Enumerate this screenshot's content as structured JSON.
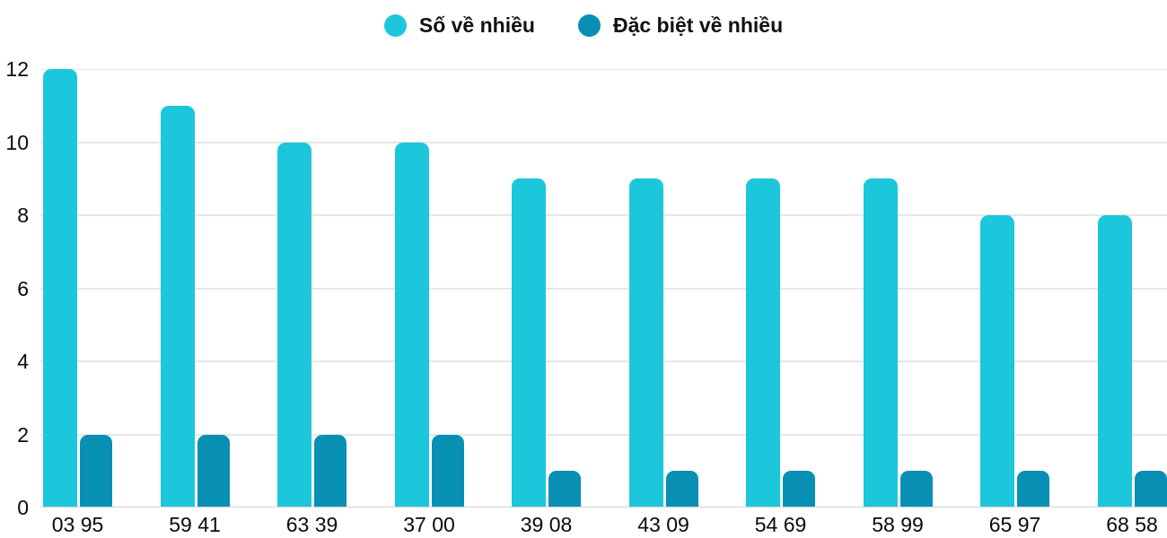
{
  "chart_data": {
    "type": "bar",
    "title": "",
    "xlabel": "",
    "ylabel": "",
    "categories": [
      "03 95",
      "59 41",
      "63 39",
      "37 00",
      "39 08",
      "43 09",
      "54 69",
      "58 99",
      "65 97",
      "68 58"
    ],
    "series": [
      {
        "name": "Số về nhiều",
        "color": "#1CC7DC",
        "values": [
          12,
          11,
          10,
          10,
          9,
          9,
          9,
          9,
          8,
          8
        ]
      },
      {
        "name": "Đặc biệt về nhiều",
        "color": "#0790B4",
        "values": [
          2,
          2,
          2,
          2,
          1,
          1,
          1,
          1,
          1,
          1
        ]
      }
    ],
    "yticks": [
      0,
      2,
      4,
      6,
      8,
      10,
      12
    ],
    "ylim": [
      0,
      12
    ],
    "grid": "horizontal",
    "legend_position": "top-center"
  },
  "colors": {
    "primary": "#1CC7DC",
    "secondary": "#0790B4",
    "gridline": "#e6e6e6",
    "baseline": "#d2d2d2",
    "text": "#0a0a0a"
  }
}
